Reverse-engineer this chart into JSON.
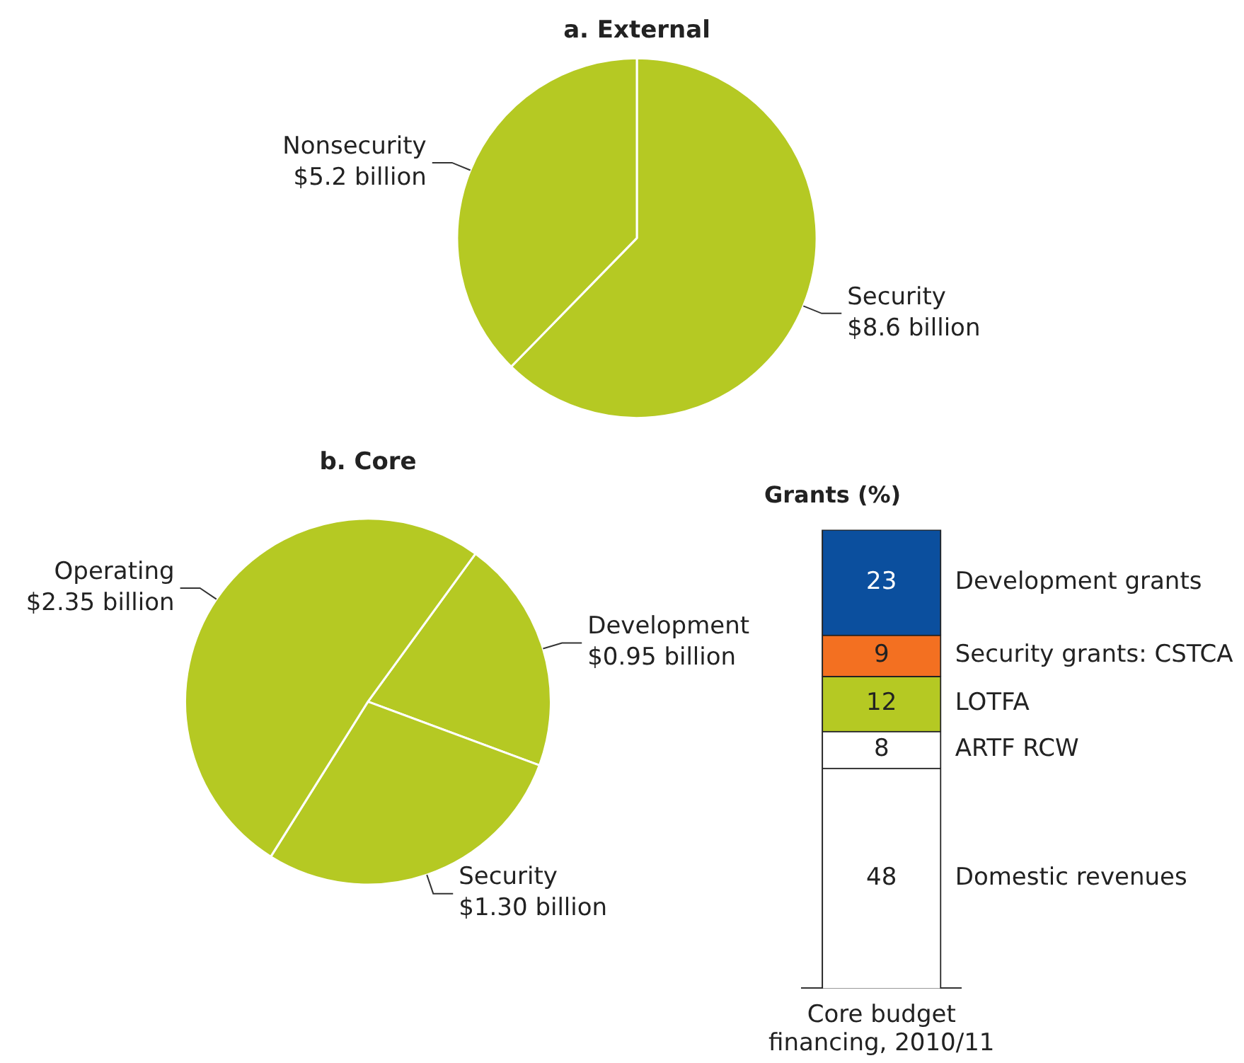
{
  "chart_data": [
    {
      "type": "pie",
      "title": "a. External",
      "categories": [
        "Security",
        "Nonsecurity"
      ],
      "values": [
        8.6,
        5.2
      ],
      "value_labels": [
        "$8.6 billion",
        "$5.2 billion"
      ],
      "colors": [
        "#b5c923",
        "#b5c923"
      ],
      "legend": false
    },
    {
      "type": "pie",
      "title": "b. Core",
      "categories": [
        "Development",
        "Security",
        "Operating"
      ],
      "values": [
        0.95,
        1.3,
        2.35
      ],
      "value_labels": [
        "$0.95 billion",
        "$1.30 billion",
        "$2.35 billion"
      ],
      "colors": [
        "#b5c923",
        "#b5c923",
        "#b5c923"
      ],
      "legend": false
    },
    {
      "type": "bar",
      "stacked": true,
      "title": "Grants (%)",
      "categories": [
        "Core budget financing, 2010/11"
      ],
      "data_labels": true,
      "tick_labels": "x",
      "legend": false,
      "series": [
        {
          "name": "Domestic revenues",
          "color": "#ffffff",
          "values": [
            48
          ]
        },
        {
          "name": "ARTF RCW",
          "color": "#ffffff",
          "values": [
            8
          ]
        },
        {
          "name": "LOTFA",
          "color": "#b5c923",
          "values": [
            12
          ]
        },
        {
          "name": "Security grants: CSTCA",
          "color": "#f37021",
          "values": [
            9
          ]
        },
        {
          "name": "Development grants",
          "color": "#0b4f9e",
          "values": [
            23
          ]
        }
      ]
    }
  ]
}
